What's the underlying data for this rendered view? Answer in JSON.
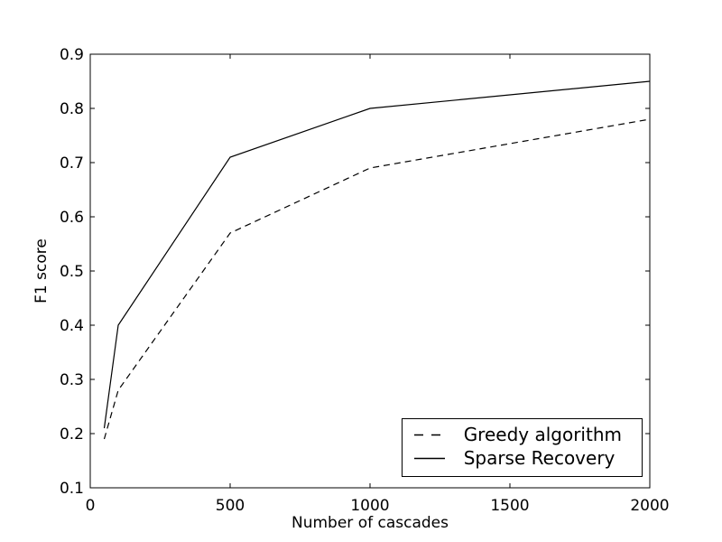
{
  "figure": {
    "background_color": "#ffffff",
    "frame_color": "#000000"
  },
  "chart_data": {
    "type": "line",
    "xlabel": "Number of cascades",
    "ylabel": "F1 score",
    "xlim": [
      0,
      2000
    ],
    "ylim": [
      0.1,
      0.9
    ],
    "grid": false,
    "legend_position": "lower right",
    "x_ticks": {
      "values": [
        0,
        500,
        1000,
        1500,
        2000
      ],
      "labels": [
        "0",
        "500",
        "1000",
        "1500",
        "2000"
      ]
    },
    "y_ticks": {
      "values": [
        0.1,
        0.2,
        0.3,
        0.4,
        0.5,
        0.6,
        0.7,
        0.8,
        0.9
      ],
      "labels": [
        "0.1",
        "0.2",
        "0.3",
        "0.4",
        "0.5",
        "0.6",
        "0.7",
        "0.8",
        "0.9"
      ]
    },
    "series": [
      {
        "name": "Greedy algorithm",
        "line_style": "dashed",
        "color": "#000000",
        "x": [
          50,
          100,
          500,
          1000,
          2000
        ],
        "y": [
          0.19,
          0.28,
          0.57,
          0.69,
          0.78
        ]
      },
      {
        "name": "Sparse Recovery",
        "line_style": "solid",
        "color": "#000000",
        "x": [
          50,
          100,
          500,
          1000,
          2000
        ],
        "y": [
          0.21,
          0.4,
          0.71,
          0.8,
          0.85
        ]
      }
    ]
  }
}
